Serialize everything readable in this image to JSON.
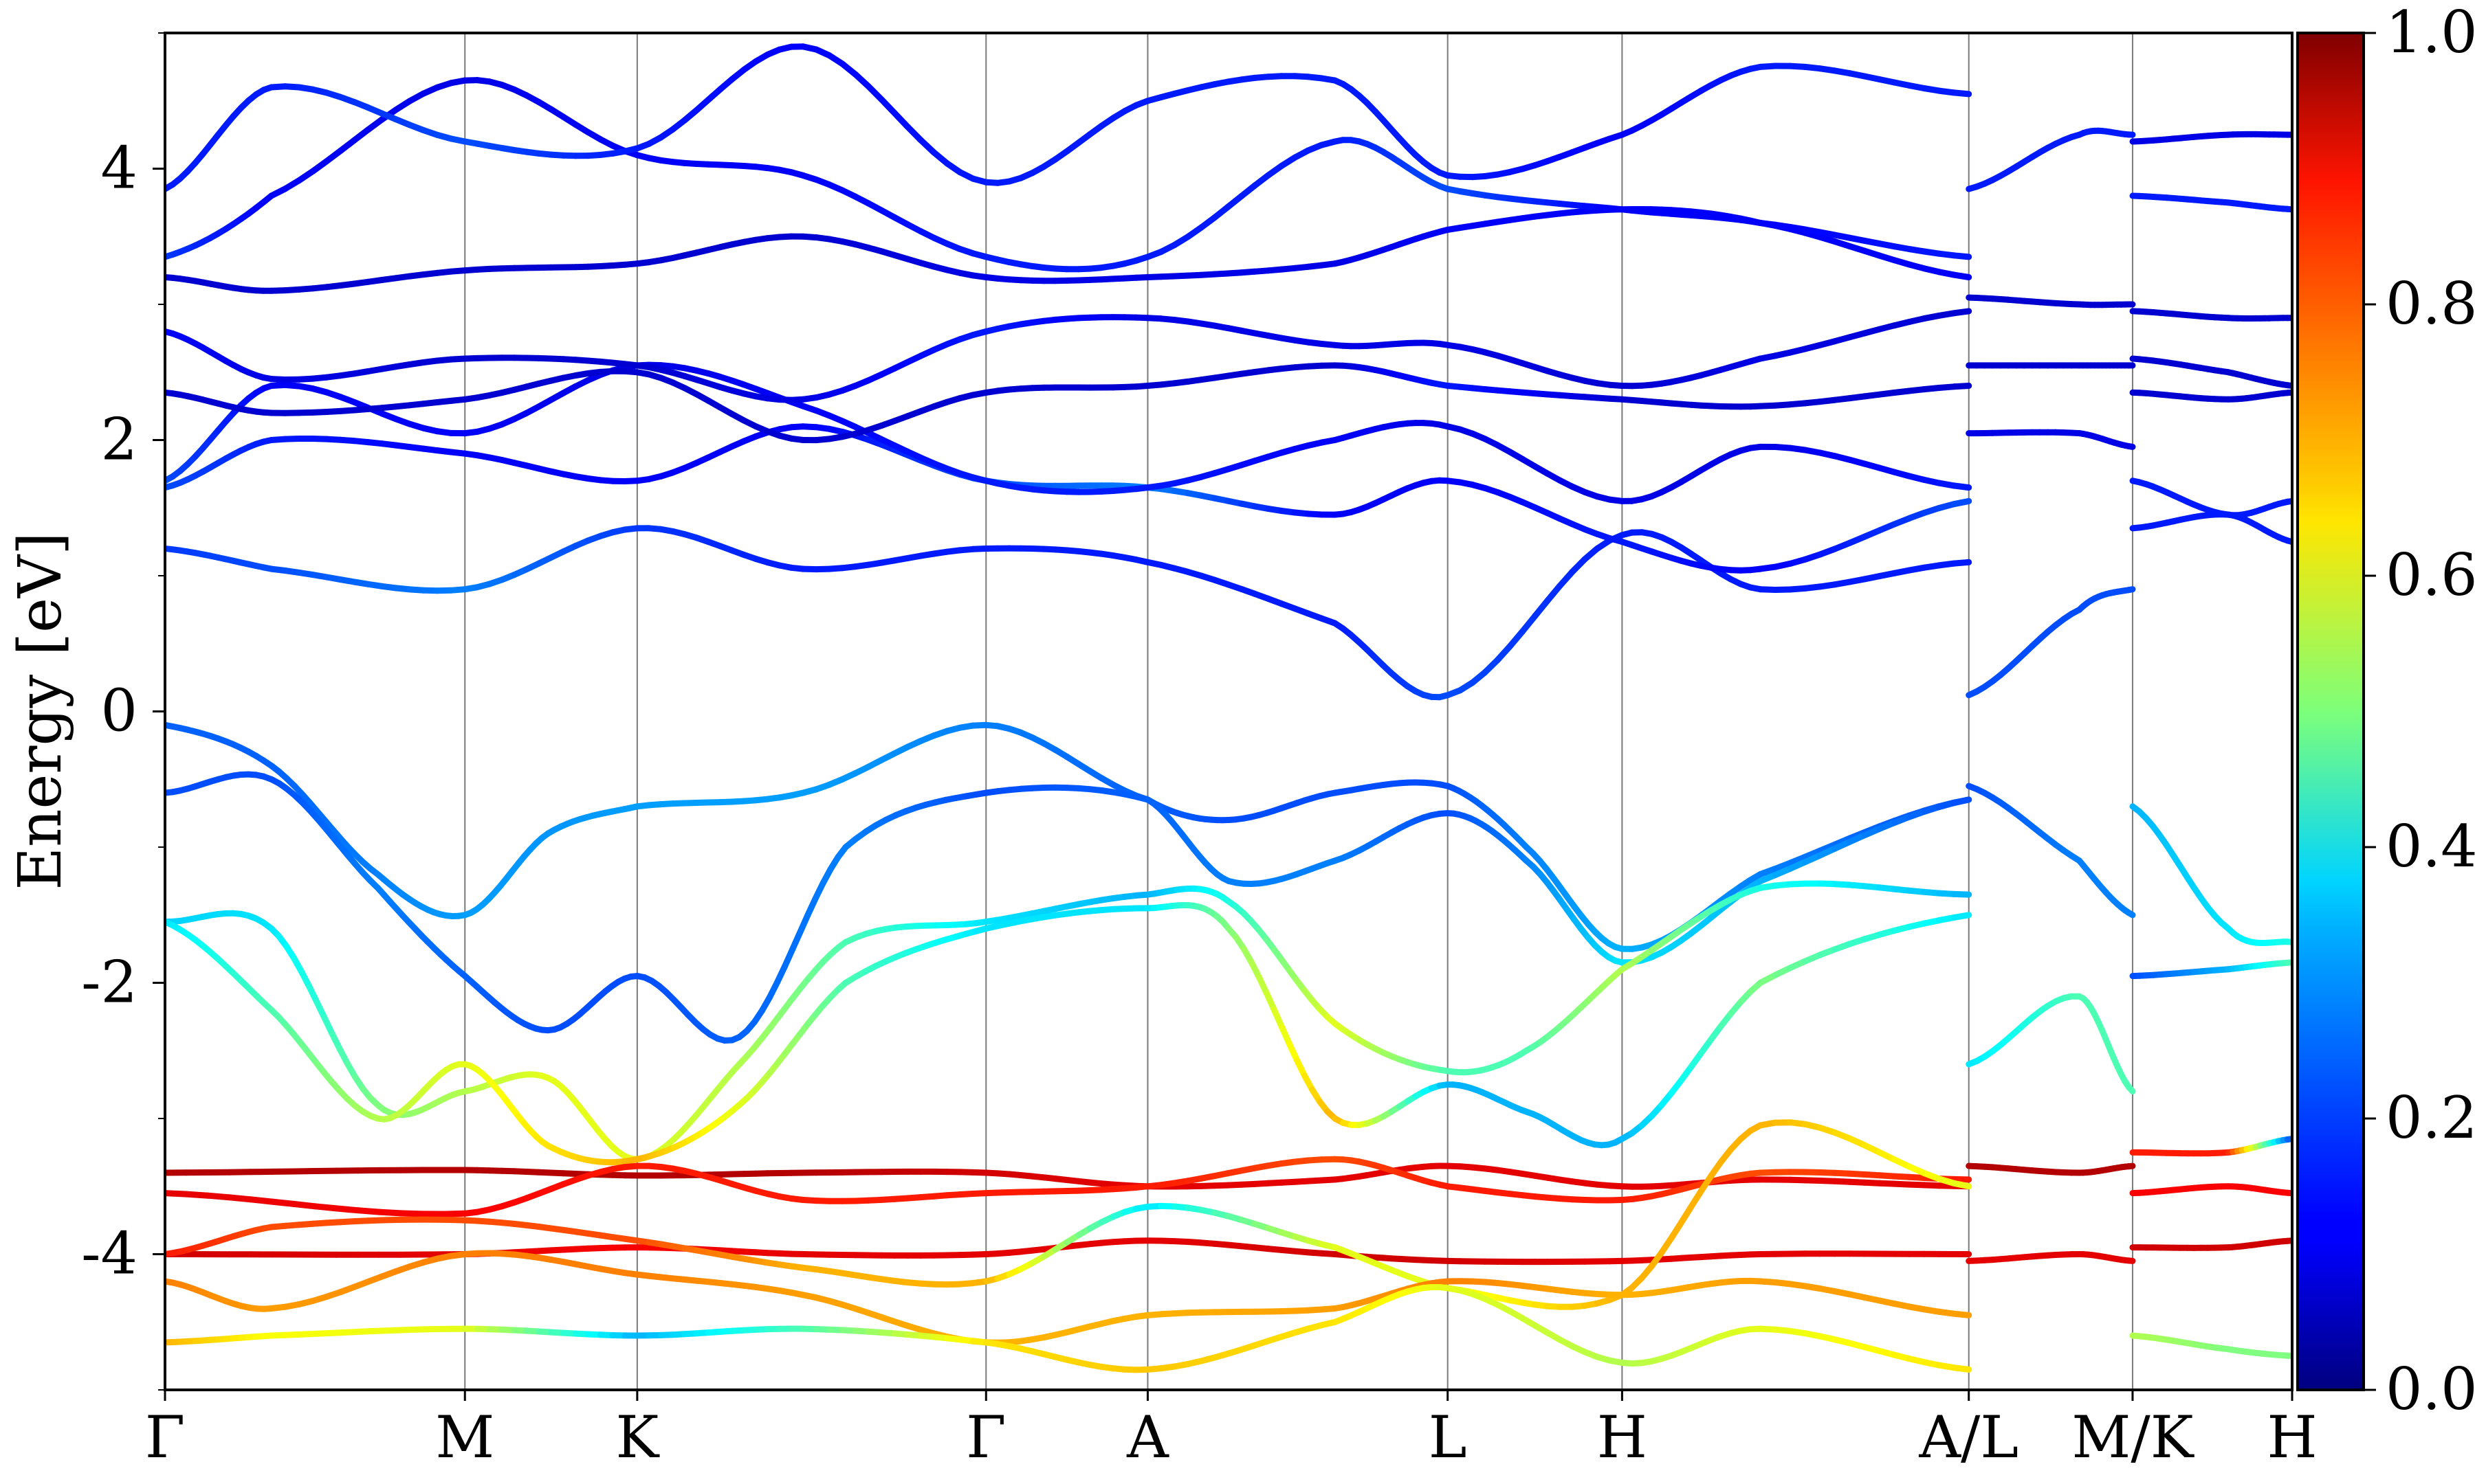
{
  "chart_data": {
    "type": "line",
    "title": "",
    "xlabel": "",
    "ylabel": "Energy [eV]",
    "ylim": [
      -5,
      5
    ],
    "yticks": [
      {
        "value": 4,
        "label": "4"
      },
      {
        "value": 2,
        "label": "2"
      },
      {
        "value": 0,
        "label": "0"
      },
      {
        "value": -2,
        "label": "-2"
      },
      {
        "value": -4,
        "label": "-4"
      }
    ],
    "kpath": [
      {
        "label": "Γ",
        "pos": 0.0
      },
      {
        "label": "M",
        "pos": 0.141
      },
      {
        "label": "K",
        "pos": 0.222
      },
      {
        "label": "Γ",
        "pos": 0.386
      },
      {
        "label": "A",
        "pos": 0.462
      },
      {
        "label": "L",
        "pos": 0.603
      },
      {
        "label": "H",
        "pos": 0.685
      },
      {
        "label": "A/L",
        "pos": 0.848
      },
      {
        "label": "M/K",
        "pos": 0.925
      },
      {
        "label": "H",
        "pos": 1.0
      }
    ],
    "colorbar": {
      "colormap": "jet",
      "range": [
        0.0,
        1.0
      ],
      "ticks": [
        "0.0",
        "0.2",
        "0.4",
        "0.6",
        "0.8",
        "1.0"
      ]
    },
    "series": [
      {
        "x": [
          0,
          0.05,
          0.1,
          0.141,
          0.18,
          0.222,
          0.3,
          0.386,
          0.462,
          0.5,
          0.55,
          0.603,
          0.64,
          0.685,
          0.75,
          0.848
        ],
        "energy": [
          -0.1,
          -0.4,
          -1.2,
          -1.5,
          -0.9,
          -0.7,
          -0.6,
          -0.1,
          -0.65,
          -0.8,
          -0.6,
          -0.55,
          -1.0,
          -1.75,
          -1.2,
          -0.65
        ],
        "weight": [
          0.22,
          0.22,
          0.25,
          0.28,
          0.27,
          0.28,
          0.28,
          0.25,
          0.22,
          0.2,
          0.2,
          0.2,
          0.25,
          0.3,
          0.25,
          0.2
        ]
      },
      {
        "x": [
          0,
          0.05,
          0.1,
          0.141,
          0.18,
          0.222,
          0.27,
          0.32,
          0.386,
          0.462,
          0.5,
          0.55,
          0.603,
          0.64,
          0.685,
          0.75,
          0.848
        ],
        "energy": [
          -0.6,
          -0.5,
          -1.3,
          -1.95,
          -2.35,
          -1.95,
          -2.4,
          -1.0,
          -0.6,
          -0.65,
          -1.25,
          -1.1,
          -0.75,
          -1.1,
          -1.85,
          -1.25,
          -0.65
        ],
        "weight": [
          0.2,
          0.2,
          0.25,
          0.22,
          0.2,
          0.2,
          0.22,
          0.25,
          0.2,
          0.22,
          0.25,
          0.25,
          0.2,
          0.25,
          0.35,
          0.3,
          0.2
        ]
      },
      {
        "x": [
          0,
          0.05,
          0.1,
          0.141,
          0.18,
          0.222,
          0.27,
          0.32,
          0.386,
          0.462,
          0.5,
          0.55,
          0.603,
          0.64,
          0.685,
          0.75,
          0.848
        ],
        "energy": [
          -1.55,
          -1.6,
          -2.9,
          -2.8,
          -2.7,
          -3.3,
          -2.6,
          -1.7,
          -1.55,
          -1.35,
          -1.4,
          -2.3,
          -2.65,
          -2.5,
          -1.9,
          -1.3,
          -1.35
        ],
        "weight": [
          0.33,
          0.35,
          0.5,
          0.55,
          0.6,
          0.6,
          0.55,
          0.45,
          0.35,
          0.3,
          0.4,
          0.6,
          0.45,
          0.45,
          0.55,
          0.4,
          0.3
        ]
      },
      {
        "x": [
          0,
          0.05,
          0.1,
          0.141,
          0.18,
          0.222,
          0.27,
          0.32,
          0.386,
          0.462,
          0.5,
          0.55,
          0.603,
          0.64,
          0.685,
          0.75,
          0.848
        ],
        "energy": [
          -1.55,
          -2.2,
          -3.0,
          -2.6,
          -3.2,
          -3.3,
          -2.9,
          -2.0,
          -1.6,
          -1.45,
          -1.6,
          -3.0,
          -2.75,
          -2.95,
          -3.15,
          -2.0,
          -1.5
        ],
        "weight": [
          0.35,
          0.45,
          0.55,
          0.6,
          0.65,
          0.7,
          0.6,
          0.45,
          0.35,
          0.35,
          0.5,
          0.7,
          0.3,
          0.3,
          0.3,
          0.5,
          0.35
        ]
      },
      {
        "x": [
          0,
          0.141,
          0.222,
          0.3,
          0.386,
          0.462,
          0.55,
          0.603,
          0.685,
          0.75,
          0.848
        ],
        "energy": [
          -3.4,
          -3.38,
          -3.42,
          -3.4,
          -3.4,
          -3.5,
          -3.45,
          -3.35,
          -3.5,
          -3.45,
          -3.5
        ],
        "weight": [
          0.95,
          0.95,
          0.95,
          0.95,
          0.92,
          0.9,
          0.9,
          0.9,
          0.9,
          0.9,
          0.9
        ]
      },
      {
        "x": [
          0,
          0.141,
          0.222,
          0.3,
          0.386,
          0.462,
          0.55,
          0.603,
          0.685,
          0.75,
          0.848
        ],
        "energy": [
          -3.55,
          -3.7,
          -3.35,
          -3.6,
          -3.55,
          -3.5,
          -3.3,
          -3.5,
          -3.6,
          -3.4,
          -3.45
        ],
        "weight": [
          0.9,
          0.88,
          0.85,
          0.85,
          0.85,
          0.85,
          0.8,
          0.85,
          0.85,
          0.8,
          0.85
        ]
      },
      {
        "x": [
          0,
          0.141,
          0.222,
          0.3,
          0.386,
          0.462,
          0.55,
          0.603,
          0.685,
          0.75,
          0.848
        ],
        "energy": [
          -4.0,
          -4.0,
          -3.95,
          -4.0,
          -4.0,
          -3.9,
          -4.0,
          -4.05,
          -4.05,
          -4.0,
          -4.0
        ],
        "weight": [
          0.92,
          0.9,
          0.88,
          0.9,
          0.9,
          0.9,
          0.92,
          0.92,
          0.9,
          0.9,
          0.9
        ]
      },
      {
        "x": [
          0,
          0.05,
          0.141,
          0.222,
          0.3,
          0.386,
          0.462,
          0.55,
          0.603,
          0.685,
          0.75,
          0.848
        ],
        "energy": [
          -4.0,
          -3.8,
          -3.75,
          -3.9,
          -4.1,
          -4.2,
          -3.65,
          -3.95,
          -4.25,
          -4.3,
          -3.05,
          -3.5
        ],
        "weight": [
          0.85,
          0.8,
          0.8,
          0.8,
          0.7,
          0.7,
          0.35,
          0.6,
          0.6,
          0.7,
          0.7,
          0.6
        ]
      },
      {
        "x": [
          0,
          0.05,
          0.141,
          0.222,
          0.3,
          0.386,
          0.462,
          0.55,
          0.603,
          0.685,
          0.75,
          0.848
        ],
        "energy": [
          -4.2,
          -4.4,
          -4.0,
          -4.15,
          -4.3,
          -4.65,
          -4.45,
          -4.4,
          -4.2,
          -4.3,
          -4.2,
          -4.45
        ],
        "weight": [
          0.75,
          0.72,
          0.75,
          0.75,
          0.72,
          0.7,
          0.7,
          0.72,
          0.75,
          0.7,
          0.72,
          0.72
        ]
      },
      {
        "x": [
          0,
          0.05,
          0.141,
          0.222,
          0.3,
          0.386,
          0.462,
          0.55,
          0.603,
          0.685,
          0.75,
          0.848
        ],
        "energy": [
          -4.65,
          -4.6,
          -4.55,
          -4.6,
          -4.55,
          -4.65,
          -4.85,
          -4.5,
          -4.25,
          -4.8,
          -4.55,
          -4.85
        ],
        "weight": [
          0.7,
          0.62,
          0.6,
          0.3,
          0.45,
          0.65,
          0.68,
          0.65,
          0.6,
          0.55,
          0.6,
          0.65
        ]
      },
      {
        "x": [
          0,
          0.05,
          0.141,
          0.222,
          0.3,
          0.386,
          0.462,
          0.55,
          0.603,
          0.685,
          0.75,
          0.848
        ],
        "energy": [
          1.2,
          1.05,
          0.9,
          1.35,
          1.05,
          1.2,
          1.1,
          0.65,
          0.12,
          1.3,
          0.9,
          1.1
        ],
        "weight": [
          0.18,
          0.2,
          0.25,
          0.18,
          0.15,
          0.15,
          0.15,
          0.15,
          0.2,
          0.15,
          0.15,
          0.15
        ]
      },
      {
        "x": [
          0,
          0.05,
          0.141,
          0.222,
          0.3,
          0.386,
          0.462,
          0.55,
          0.603,
          0.685,
          0.75,
          0.848
        ],
        "energy": [
          1.65,
          2.0,
          1.9,
          1.7,
          2.1,
          1.7,
          1.65,
          1.45,
          1.7,
          1.25,
          1.05,
          1.55
        ],
        "weight": [
          0.2,
          0.15,
          0.12,
          0.12,
          0.12,
          0.2,
          0.25,
          0.12,
          0.12,
          0.15,
          0.12,
          0.2
        ]
      },
      {
        "x": [
          0,
          0.05,
          0.141,
          0.222,
          0.3,
          0.386,
          0.462,
          0.55,
          0.603,
          0.685,
          0.75,
          0.848
        ],
        "energy": [
          1.7,
          2.4,
          2.05,
          2.55,
          2.25,
          1.7,
          1.65,
          2.0,
          2.1,
          1.55,
          1.95,
          1.65
        ],
        "weight": [
          0.2,
          0.12,
          0.12,
          0.1,
          0.12,
          0.15,
          0.15,
          0.12,
          0.1,
          0.1,
          0.1,
          0.15
        ]
      },
      {
        "x": [
          0,
          0.05,
          0.141,
          0.222,
          0.3,
          0.386,
          0.462,
          0.55,
          0.603,
          0.685,
          0.75,
          0.848
        ],
        "energy": [
          2.35,
          2.2,
          2.3,
          2.5,
          2.0,
          2.35,
          2.4,
          2.55,
          2.4,
          2.3,
          2.25,
          2.4
        ],
        "weight": [
          0.08,
          0.08,
          0.08,
          0.08,
          0.08,
          0.08,
          0.08,
          0.08,
          0.15,
          0.08,
          0.08,
          0.08
        ]
      },
      {
        "x": [
          0,
          0.05,
          0.141,
          0.222,
          0.3,
          0.386,
          0.462,
          0.55,
          0.603,
          0.685,
          0.75,
          0.848
        ],
        "energy": [
          2.8,
          2.45,
          2.6,
          2.55,
          2.3,
          2.8,
          2.9,
          2.7,
          2.7,
          2.4,
          2.6,
          2.95
        ],
        "weight": [
          0.12,
          0.1,
          0.08,
          0.08,
          0.1,
          0.15,
          0.1,
          0.1,
          0.1,
          0.08,
          0.1,
          0.08
        ]
      },
      {
        "x": [
          0,
          0.05,
          0.141,
          0.222,
          0.3,
          0.386,
          0.462,
          0.55,
          0.603,
          0.685,
          0.75,
          0.848
        ],
        "energy": [
          3.2,
          3.1,
          3.25,
          3.3,
          3.5,
          3.2,
          3.2,
          3.3,
          3.55,
          3.7,
          3.6,
          3.2
        ],
        "weight": [
          0.08,
          0.08,
          0.08,
          0.08,
          0.08,
          0.1,
          0.1,
          0.1,
          0.12,
          0.12,
          0.12,
          0.12
        ]
      },
      {
        "x": [
          0,
          0.05,
          0.141,
          0.222,
          0.3,
          0.386,
          0.462,
          0.55,
          0.603,
          0.685,
          0.75,
          0.848
        ],
        "energy": [
          3.35,
          3.8,
          4.65,
          4.1,
          3.95,
          3.35,
          3.35,
          4.2,
          3.85,
          3.7,
          3.6,
          3.35
        ],
        "weight": [
          0.18,
          0.12,
          0.1,
          0.12,
          0.12,
          0.15,
          0.15,
          0.15,
          0.2,
          0.12,
          0.12,
          0.15
        ]
      },
      {
        "x": [
          0,
          0.05,
          0.141,
          0.222,
          0.3,
          0.386,
          0.462,
          0.55,
          0.603,
          0.685,
          0.75,
          0.848
        ],
        "energy": [
          3.85,
          4.6,
          4.2,
          4.15,
          4.9,
          3.9,
          4.5,
          4.65,
          3.95,
          4.25,
          4.75,
          4.55
        ],
        "weight": [
          0.15,
          0.15,
          0.2,
          0.15,
          0.12,
          0.15,
          0.15,
          0.15,
          0.15,
          0.12,
          0.15,
          0.15
        ]
      },
      {
        "x": [
          0.848,
          0.9,
          0.925
        ],
        "energy": [
          0.12,
          0.75,
          0.9
        ],
        "weight": [
          0.2,
          0.2,
          0.2
        ]
      },
      {
        "x": [
          0.848,
          0.9,
          0.925
        ],
        "energy": [
          -0.55,
          -1.1,
          -1.5
        ],
        "weight": [
          0.2,
          0.25,
          0.25
        ]
      },
      {
        "x": [
          0.848,
          0.9,
          0.925
        ],
        "energy": [
          -2.6,
          -2.1,
          -2.8
        ],
        "weight": [
          0.35,
          0.45,
          0.45
        ]
      },
      {
        "x": [
          0.848,
          0.9,
          0.925
        ],
        "energy": [
          -3.35,
          -3.4,
          -3.35
        ],
        "weight": [
          0.95,
          0.95,
          0.95
        ]
      },
      {
        "x": [
          0.848,
          0.9,
          0.925
        ],
        "energy": [
          -4.05,
          -4.0,
          -4.05
        ],
        "weight": [
          0.9,
          0.9,
          0.9
        ]
      },
      {
        "x": [
          0.848,
          0.9,
          0.925
        ],
        "energy": [
          3.05,
          3.0,
          3.0
        ],
        "weight": [
          0.08,
          0.08,
          0.08
        ]
      },
      {
        "x": [
          0.848,
          0.9,
          0.925
        ],
        "energy": [
          2.55,
          2.55,
          2.55
        ],
        "weight": [
          0.08,
          0.08,
          0.08
        ]
      },
      {
        "x": [
          0.848,
          0.9,
          0.925
        ],
        "energy": [
          2.05,
          2.05,
          1.95
        ],
        "weight": [
          0.1,
          0.1,
          0.1
        ]
      },
      {
        "x": [
          0.848,
          0.9,
          0.925
        ],
        "energy": [
          3.85,
          4.25,
          4.25
        ],
        "weight": [
          0.15,
          0.15,
          0.15
        ]
      },
      {
        "x": [
          0.925,
          0.97,
          1.0
        ],
        "energy": [
          -0.7,
          -1.6,
          -1.7
        ],
        "weight": [
          0.3,
          0.35,
          0.4
        ]
      },
      {
        "x": [
          0.925,
          0.97,
          1.0
        ],
        "energy": [
          -1.95,
          -1.9,
          -1.85
        ],
        "weight": [
          0.2,
          0.3,
          0.45
        ]
      },
      {
        "x": [
          0.925,
          0.97,
          1.0
        ],
        "energy": [
          1.35,
          1.45,
          1.25
        ],
        "weight": [
          0.15,
          0.15,
          0.15
        ]
      },
      {
        "x": [
          0.925,
          0.97,
          1.0
        ],
        "energy": [
          1.7,
          1.45,
          1.55
        ],
        "weight": [
          0.15,
          0.15,
          0.15
        ]
      },
      {
        "x": [
          0.925,
          0.97,
          1.0
        ],
        "energy": [
          -3.25,
          -3.25,
          -3.15
        ],
        "weight": [
          0.85,
          0.85,
          0.2
        ]
      },
      {
        "x": [
          0.925,
          0.97,
          1.0
        ],
        "energy": [
          -3.55,
          -3.5,
          -3.55
        ],
        "weight": [
          0.88,
          0.88,
          0.88
        ]
      },
      {
        "x": [
          0.925,
          0.97,
          1.0
        ],
        "energy": [
          -3.95,
          -3.95,
          -3.9
        ],
        "weight": [
          0.92,
          0.92,
          0.92
        ]
      },
      {
        "x": [
          0.925,
          0.97,
          1.0
        ],
        "energy": [
          -4.6,
          -4.7,
          -4.75
        ],
        "weight": [
          0.55,
          0.5,
          0.5
        ]
      },
      {
        "x": [
          0.925,
          0.97,
          1.0
        ],
        "energy": [
          2.95,
          2.9,
          2.9
        ],
        "weight": [
          0.08,
          0.08,
          0.08
        ]
      },
      {
        "x": [
          0.925,
          0.97,
          1.0
        ],
        "energy": [
          2.35,
          2.3,
          2.35
        ],
        "weight": [
          0.08,
          0.08,
          0.08
        ]
      },
      {
        "x": [
          0.925,
          0.97,
          1.0
        ],
        "energy": [
          2.6,
          2.5,
          2.4
        ],
        "weight": [
          0.08,
          0.08,
          0.08
        ]
      },
      {
        "x": [
          0.925,
          0.97,
          1.0
        ],
        "energy": [
          4.2,
          4.25,
          4.25
        ],
        "weight": [
          0.1,
          0.1,
          0.1
        ]
      },
      {
        "x": [
          0.925,
          0.97,
          1.0
        ],
        "energy": [
          3.8,
          3.75,
          3.7
        ],
        "weight": [
          0.15,
          0.15,
          0.15
        ]
      }
    ]
  }
}
